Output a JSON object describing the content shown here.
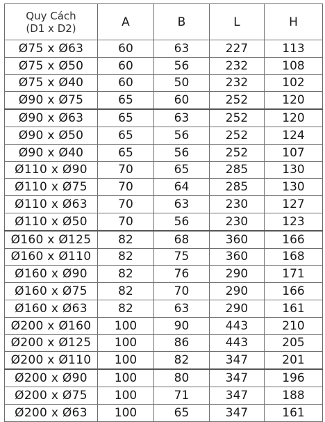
{
  "table": {
    "header": {
      "spec_line1": "Quy Cách",
      "spec_line2": "(D1 x D2)",
      "a": "A",
      "b": "B",
      "l": "L",
      "h": "H"
    },
    "rows": [
      {
        "spec": "Ø75 x Ø63",
        "a": "60",
        "b": "63",
        "l": "227",
        "h": "113"
      },
      {
        "spec": "Ø75 x Ø50",
        "a": "60",
        "b": "56",
        "l": "232",
        "h": "108"
      },
      {
        "spec": "Ø75 x Ø40",
        "a": "60",
        "b": "50",
        "l": "232",
        "h": "102"
      },
      {
        "spec": "Ø90 x Ø75",
        "a": "65",
        "b": "60",
        "l": "252",
        "h": "120"
      },
      {
        "spec": "Ø90 x Ø63",
        "a": "65",
        "b": "63",
        "l": "252",
        "h": "120"
      },
      {
        "spec": "Ø90 x Ø50",
        "a": "65",
        "b": "56",
        "l": "252",
        "h": "124"
      },
      {
        "spec": "Ø90 x Ø40",
        "a": "65",
        "b": "56",
        "l": "252",
        "h": "107"
      },
      {
        "spec": "Ø110 x Ø90",
        "a": "70",
        "b": "65",
        "l": "285",
        "h": "130"
      },
      {
        "spec": "Ø110 x Ø75",
        "a": "70",
        "b": "64",
        "l": "285",
        "h": "130"
      },
      {
        "spec": "Ø110 x Ø63",
        "a": "70",
        "b": "63",
        "l": "230",
        "h": "127"
      },
      {
        "spec": "Ø110 x Ø50",
        "a": "70",
        "b": "56",
        "l": "230",
        "h": "123"
      },
      {
        "spec": "Ø160 x Ø125",
        "a": "82",
        "b": "68",
        "l": "360",
        "h": "166"
      },
      {
        "spec": "Ø160 x Ø110",
        "a": "82",
        "b": "75",
        "l": "360",
        "h": "168"
      },
      {
        "spec": "Ø160 x Ø90",
        "a": "82",
        "b": "76",
        "l": "290",
        "h": "171"
      },
      {
        "spec": "Ø160 x Ø75",
        "a": "82",
        "b": "70",
        "l": "290",
        "h": "166"
      },
      {
        "spec": "Ø160 x Ø63",
        "a": "82",
        "b": "63",
        "l": "290",
        "h": "161"
      },
      {
        "spec": "Ø200 x Ø160",
        "a": "100",
        "b": "90",
        "l": "443",
        "h": "210"
      },
      {
        "spec": "Ø200 x Ø125",
        "a": "100",
        "b": "86",
        "l": "443",
        "h": "205"
      },
      {
        "spec": "Ø200 x Ø110",
        "a": "100",
        "b": "82",
        "l": "347",
        "h": "201"
      },
      {
        "spec": "Ø200 x Ø90",
        "a": "100",
        "b": "80",
        "l": "347",
        "h": "196"
      },
      {
        "spec": "Ø200 x Ø75",
        "a": "100",
        "b": "71",
        "l": "347",
        "h": "188"
      },
      {
        "spec": "Ø200 x Ø63",
        "a": "100",
        "b": "65",
        "l": "347",
        "h": "161"
      }
    ]
  }
}
